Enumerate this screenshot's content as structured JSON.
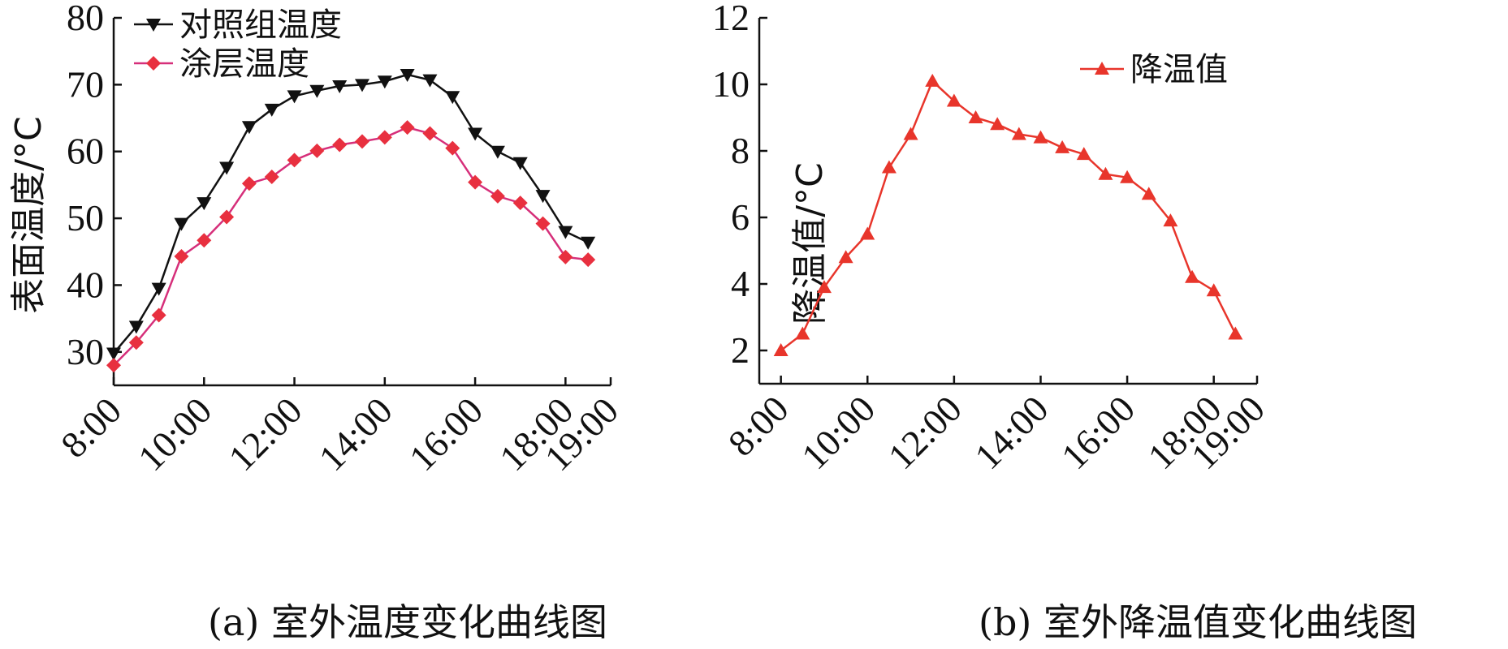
{
  "chart_data": [
    {
      "type": "line",
      "caption": "(a) 室外温度变化曲线图",
      "ylabel": "表面温度/°C",
      "xlabel": "",
      "ylim": [
        25,
        80
      ],
      "yticks": [
        30,
        40,
        50,
        60,
        70,
        80
      ],
      "ytick_labels": [
        "30",
        "40",
        "50",
        "60",
        "70",
        "80"
      ],
      "xlim": [
        8,
        19
      ],
      "xticks": [
        8,
        10,
        12,
        14,
        16,
        18,
        19
      ],
      "xtick_labels": [
        "8:00",
        "10:00",
        "12:00",
        "14:00",
        "16:00",
        "18:00",
        "19:00"
      ],
      "x": [
        "8:00",
        "8:30",
        "9:00",
        "9:30",
        "10:00",
        "10:30",
        "11:00",
        "11:30",
        "12:00",
        "12:30",
        "13:00",
        "13:30",
        "14:00",
        "14:30",
        "15:00",
        "15:30",
        "16:00",
        "16:30",
        "17:00",
        "17:30",
        "18:00",
        "18:30"
      ],
      "series": [
        {
          "name": "对照组温度",
          "color": "#111111",
          "marker": "triangle-down",
          "values": [
            29.8,
            33.8,
            39.5,
            49.2,
            52.3,
            57.6,
            63.7,
            66.3,
            68.3,
            69.1,
            69.8,
            70.0,
            70.5,
            71.5,
            70.7,
            68.2,
            62.7,
            60.0,
            58.3,
            53.4,
            48.0,
            46.4
          ]
        },
        {
          "name": "涂层温度",
          "color": "#e8303f",
          "line_color": "#d62f7a",
          "marker": "diamond",
          "values": [
            28.0,
            31.4,
            35.5,
            44.3,
            46.7,
            50.2,
            55.2,
            56.2,
            58.7,
            60.1,
            61.0,
            61.5,
            62.1,
            63.6,
            62.7,
            60.5,
            55.4,
            53.3,
            52.3,
            49.2,
            44.2,
            43.8
          ]
        }
      ],
      "legend_position": "top-left"
    },
    {
      "type": "line",
      "caption": "(b) 室外降温值变化曲线图",
      "ylabel": "降温值/°C",
      "xlabel": "",
      "ylim": [
        1,
        12
      ],
      "yticks": [
        2,
        4,
        6,
        8,
        10,
        12
      ],
      "ytick_labels": [
        "2",
        "4",
        "6",
        "8",
        "10",
        "12"
      ],
      "xlim": [
        7.5,
        19
      ],
      "xticks": [
        8,
        10,
        12,
        14,
        16,
        18,
        19
      ],
      "xtick_labels": [
        "8:00",
        "10:00",
        "12:00",
        "14:00",
        "16:00",
        "18:00",
        "19:00"
      ],
      "x": [
        "8:00",
        "8:30",
        "9:00",
        "9:30",
        "10:00",
        "10:30",
        "11:00",
        "11:30",
        "12:00",
        "12:30",
        "13:00",
        "13:30",
        "14:00",
        "14:30",
        "15:00",
        "15:30",
        "16:00",
        "16:30",
        "17:00",
        "17:30",
        "18:00",
        "18:30"
      ],
      "series": [
        {
          "name": "降温值",
          "color": "#e8352b",
          "marker": "triangle-up",
          "values": [
            2.0,
            2.5,
            3.9,
            4.8,
            5.5,
            7.5,
            8.5,
            10.1,
            9.5,
            9.0,
            8.8,
            8.5,
            8.4,
            8.1,
            7.9,
            7.3,
            7.2,
            6.7,
            5.9,
            4.2,
            3.8,
            2.5
          ]
        }
      ],
      "legend_position": "top-right"
    }
  ]
}
